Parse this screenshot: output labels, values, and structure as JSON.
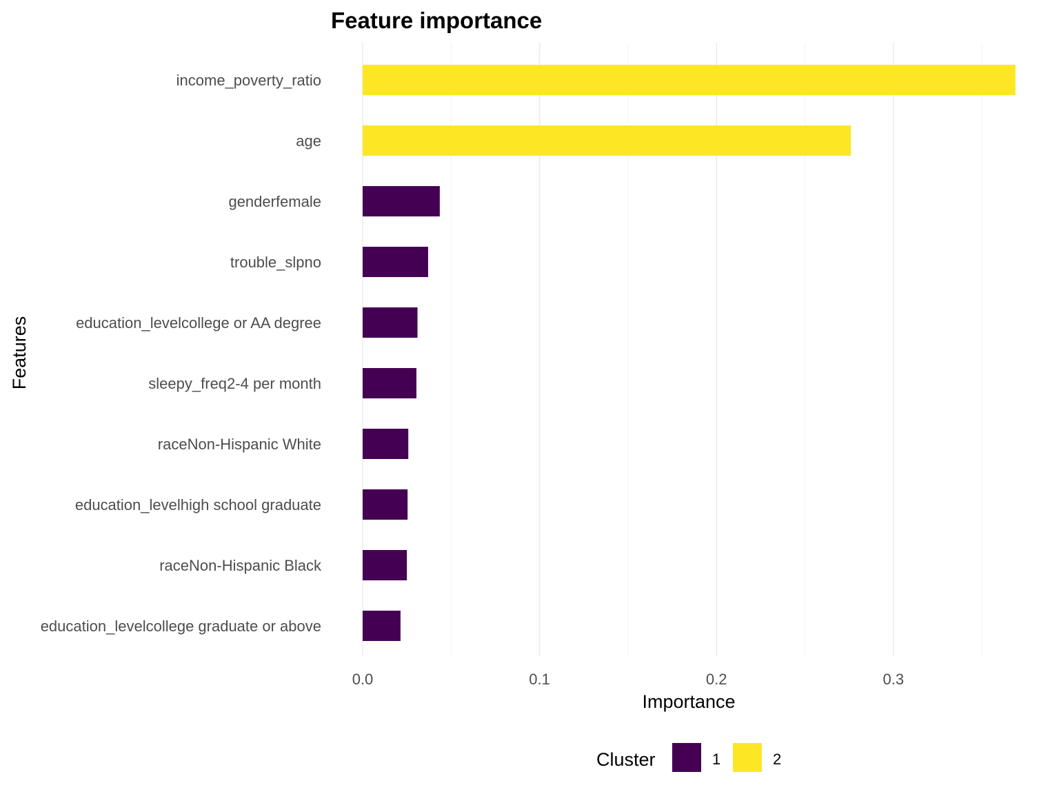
{
  "chart_data": {
    "type": "bar",
    "orientation": "horizontal",
    "title": "Feature importance",
    "xlabel": "Importance",
    "ylabel": "Features",
    "xlim": [
      0,
      0.369
    ],
    "x_ticks": [
      0.0,
      0.1,
      0.2,
      0.3
    ],
    "x_tick_labels": [
      "0.0",
      "0.1",
      "0.2",
      "0.3"
    ],
    "grid": true,
    "categories": [
      "income_poverty_ratio",
      "age",
      "genderfemale",
      "trouble_slpno",
      "education_levelcollege or AA degree",
      "sleepy_freq2-4 per month",
      "raceNon-Hispanic White",
      "education_levelhigh school graduate",
      "raceNon-Hispanic Black",
      "education_levelcollege graduate or above"
    ],
    "values": [
      0.369,
      0.276,
      0.0436,
      0.037,
      0.031,
      0.0304,
      0.0258,
      0.0254,
      0.025,
      0.0214
    ],
    "cluster": [
      "2",
      "2",
      "1",
      "1",
      "1",
      "1",
      "1",
      "1",
      "1",
      "1"
    ],
    "legend": {
      "title": "Cluster",
      "position": "bottom",
      "entries": [
        {
          "label": "1",
          "color": "#440154"
        },
        {
          "label": "2",
          "color": "#FDE725"
        }
      ]
    }
  }
}
